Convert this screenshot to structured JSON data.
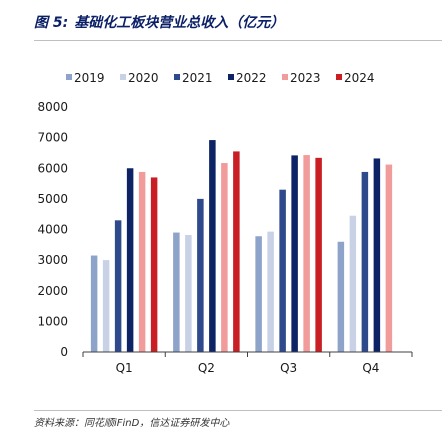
{
  "figure": {
    "number": "图 5:",
    "title": "基础化工板块营业总收入（亿元）"
  },
  "source": "资料来源：同花顺iFinD，信达证券研发中心",
  "colors": {
    "2019": "#8ea3c9",
    "2020": "#c8d1e6",
    "2021": "#2f4a8c",
    "2022": "#0d2366",
    "2023": "#f29b9b",
    "2024": "#c81e24",
    "axis": "#404040",
    "title": "#0a1f66"
  },
  "chart_data": {
    "type": "bar",
    "categories": [
      "Q1",
      "Q2",
      "Q3",
      "Q4"
    ],
    "series": [
      {
        "name": "2019",
        "values": [
          3150,
          3900,
          3780,
          3600
        ]
      },
      {
        "name": "2020",
        "values": [
          3000,
          3820,
          3930,
          4450
        ]
      },
      {
        "name": "2021",
        "values": [
          4300,
          5000,
          5300,
          5880
        ]
      },
      {
        "name": "2022",
        "values": [
          6000,
          6920,
          6420,
          6320
        ]
      },
      {
        "name": "2023",
        "values": [
          5880,
          6170,
          6430,
          6120
        ]
      },
      {
        "name": "2024",
        "values": [
          5700,
          6550,
          6340,
          null
        ]
      }
    ],
    "ylim": [
      0,
      8000
    ],
    "yticks": [
      0,
      1000,
      2000,
      3000,
      4000,
      5000,
      6000,
      7000,
      8000
    ],
    "xlabel": "",
    "ylabel": "",
    "grid": false,
    "legend_position": "top"
  }
}
